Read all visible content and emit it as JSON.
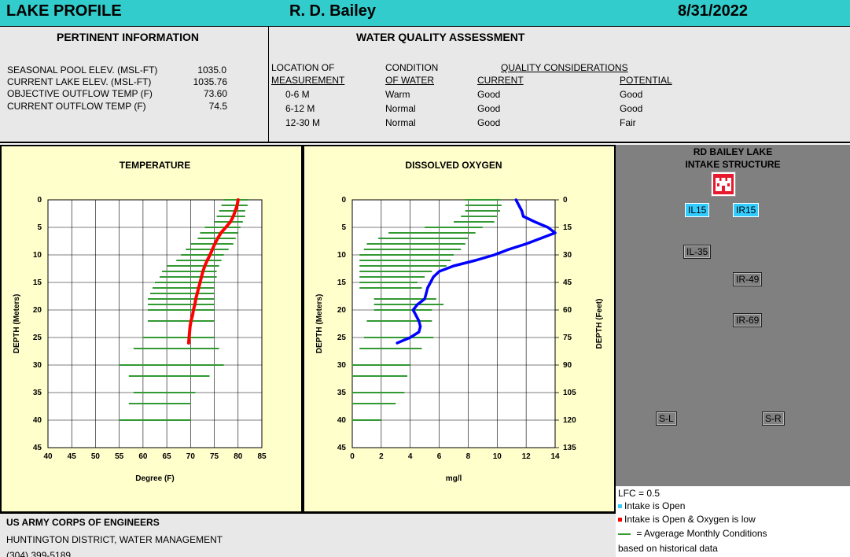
{
  "header": {
    "title": "LAKE PROFILE",
    "lake": "R. D. Bailey",
    "date": "8/31/2022"
  },
  "pertinent": {
    "title": "PERTINENT INFORMATION",
    "rows": [
      {
        "label": "SEASONAL POOL ELEV. (MSL-FT)",
        "value": "1035.0"
      },
      {
        "label": "CURRENT LAKE ELEV. (MSL-FT)",
        "value": "1035.76"
      },
      {
        "label": "OBJECTIVE OUTFLOW TEMP (F)",
        "value": "73.60"
      },
      {
        "label": "CURRENT OUTFLOW TEMP (F)",
        "value": "74.5"
      }
    ]
  },
  "wqa": {
    "title": "WATER QUALITY ASSESSMENT",
    "col_location_1": "LOCATION OF",
    "col_location_2": "MEASUREMENT",
    "col_condition_1": "CONDITION",
    "col_condition_2": "OF WATER",
    "col_quality": "QUALITY CONSIDERATIONS",
    "col_current": "CURRENT",
    "col_potential": "POTENTIAL",
    "rows": [
      {
        "loc": "0-6 M",
        "cond": "Warm",
        "cur": "Good",
        "pot": "Good"
      },
      {
        "loc": "6-12 M",
        "cond": "Normal",
        "cur": "Good",
        "pot": "Good"
      },
      {
        "loc": "12-30 M",
        "cond": "Normal",
        "cur": "Good",
        "pot": "Fair"
      }
    ]
  },
  "intake": {
    "title_1": "RD BAILEY LAKE",
    "title_2": "INTAKE STRUCTURE",
    "gates": [
      {
        "label": "IL15",
        "state": "open"
      },
      {
        "label": "IR15",
        "state": "open"
      },
      {
        "label": "IL-35",
        "state": "closed"
      },
      {
        "label": "IR-49",
        "state": "closed"
      },
      {
        "label": "IR-69",
        "state": "closed"
      },
      {
        "label": "S-L",
        "state": "closed"
      },
      {
        "label": "S-R",
        "state": "closed"
      }
    ],
    "colors": {
      "open": "#33ccff",
      "low_oxygen": "#ff0000",
      "monthly": "#339933"
    }
  },
  "legend": {
    "lfc": "LFC  =  0.5",
    "open": "Intake is Open",
    "low": "Intake is Open & Oxygen is low",
    "monthly": " = Avgerage Monthly Conditions",
    "hist": "based on historical data"
  },
  "footer": {
    "org": "US ARMY CORPS OF ENGINEERS",
    "district": "HUNTINGTON DISTRICT, WATER MANAGEMENT",
    "phone": "(304) 399-5189"
  },
  "chart_data": [
    {
      "type": "line",
      "title": "TEMPERATURE",
      "xlabel": "Degree (F)",
      "ylabel": "DEPTH (Meters)",
      "xlim": [
        40,
        85
      ],
      "ylim": [
        45,
        0
      ],
      "xticks": [
        40,
        45,
        50,
        55,
        60,
        65,
        70,
        75,
        80,
        85
      ],
      "yticks": [
        0,
        5,
        10,
        15,
        20,
        25,
        30,
        35,
        40,
        45
      ],
      "grid": true,
      "line_color": "#ff0000",
      "range_color": "#339933",
      "series": [
        {
          "depth": [
            0,
            1,
            2,
            3,
            4,
            5,
            6,
            7,
            8,
            9,
            10,
            11,
            12,
            13,
            14,
            15,
            16,
            17,
            18,
            19,
            20,
            21,
            22,
            23,
            24,
            25,
            26
          ],
          "values": [
            80.0,
            79.8,
            79.4,
            79.0,
            78.4,
            77.4,
            76.4,
            75.7,
            75.1,
            74.6,
            74.1,
            73.5,
            73.0,
            72.6,
            72.3,
            72.0,
            71.7,
            71.4,
            71.1,
            70.9,
            70.6,
            70.4,
            70.1,
            69.9,
            69.8,
            69.7,
            69.6
          ]
        }
      ],
      "monthly_ranges": [
        {
          "depth": 0,
          "min": 77.0,
          "max": 82.0
        },
        {
          "depth": 1,
          "min": 76.5,
          "max": 82.0
        },
        {
          "depth": 2,
          "min": 76.0,
          "max": 81.5
        },
        {
          "depth": 3,
          "min": 75.5,
          "max": 81.5
        },
        {
          "depth": 4,
          "min": 75.0,
          "max": 81.0
        },
        {
          "depth": 5,
          "min": 73.0,
          "max": 80.5
        },
        {
          "depth": 6,
          "min": 72.0,
          "max": 80.0
        },
        {
          "depth": 7,
          "min": 71.5,
          "max": 79.5
        },
        {
          "depth": 8,
          "min": 70.0,
          "max": 79.0
        },
        {
          "depth": 9,
          "min": 69.0,
          "max": 78.0
        },
        {
          "depth": 10,
          "min": 68.0,
          "max": 77.0
        },
        {
          "depth": 11,
          "min": 67.0,
          "max": 76.5
        },
        {
          "depth": 12,
          "min": 65.0,
          "max": 76.0
        },
        {
          "depth": 13,
          "min": 64.0,
          "max": 75.5
        },
        {
          "depth": 14,
          "min": 63.5,
          "max": 75.5
        },
        {
          "depth": 15,
          "min": 62.5,
          "max": 75.0
        },
        {
          "depth": 16,
          "min": 62.0,
          "max": 75.0
        },
        {
          "depth": 17,
          "min": 61.5,
          "max": 75.0
        },
        {
          "depth": 18,
          "min": 61.0,
          "max": 75.0
        },
        {
          "depth": 19,
          "min": 61.0,
          "max": 75.0
        },
        {
          "depth": 20,
          "min": 61.0,
          "max": 75.0
        },
        {
          "depth": 22,
          "min": 61.0,
          "max": 75.0
        },
        {
          "depth": 25,
          "min": 60.0,
          "max": 75.0
        },
        {
          "depth": 27,
          "min": 58.0,
          "max": 76.0
        },
        {
          "depth": 30,
          "min": 55.0,
          "max": 77.0
        },
        {
          "depth": 32,
          "min": 57.0,
          "max": 74.0
        },
        {
          "depth": 35,
          "min": 58.0,
          "max": 71.0
        },
        {
          "depth": 37,
          "min": 57.0,
          "max": 70.0
        },
        {
          "depth": 40,
          "min": 55.0,
          "max": 70.0
        }
      ]
    },
    {
      "type": "line",
      "title": "DISSOLVED OXYGEN",
      "xlabel": "mg/l",
      "ylabel": "DEPTH (Meters)",
      "y2label": "DEPTH (Feet)",
      "xlim": [
        0,
        14
      ],
      "ylim": [
        45,
        0
      ],
      "xticks": [
        0,
        2,
        4,
        6,
        8,
        10,
        12,
        14
      ],
      "yticks": [
        0,
        5,
        10,
        15,
        20,
        25,
        30,
        35,
        40,
        45
      ],
      "y2ticks": [
        0,
        15,
        30,
        45,
        60,
        75,
        90,
        105,
        120,
        135
      ],
      "grid": true,
      "line_color": "#0000ff",
      "range_color": "#339933",
      "series": [
        {
          "depth": [
            0,
            1,
            2,
            3,
            4,
            5,
            6,
            7,
            8,
            9,
            10,
            11,
            12,
            13,
            14,
            15,
            16,
            17,
            18,
            19,
            20,
            21,
            22,
            23,
            24,
            25,
            26
          ],
          "values": [
            11.3,
            11.5,
            11.7,
            11.8,
            12.6,
            13.5,
            14.0,
            13.0,
            12.0,
            10.8,
            9.8,
            8.5,
            7.0,
            6.0,
            5.6,
            5.4,
            5.2,
            5.1,
            5.0,
            4.5,
            4.2,
            4.4,
            4.6,
            4.7,
            4.6,
            4.0,
            3.1
          ]
        }
      ],
      "monthly_ranges": [
        {
          "depth": 0,
          "min": 7.8,
          "max": 10.2
        },
        {
          "depth": 1,
          "min": 7.8,
          "max": 10.3
        },
        {
          "depth": 2,
          "min": 7.8,
          "max": 10.2
        },
        {
          "depth": 3,
          "min": 7.5,
          "max": 10.0
        },
        {
          "depth": 4,
          "min": 7.0,
          "max": 9.8
        },
        {
          "depth": 5,
          "min": 5.0,
          "max": 9.0
        },
        {
          "depth": 6,
          "min": 2.5,
          "max": 8.5
        },
        {
          "depth": 7,
          "min": 1.8,
          "max": 8.0
        },
        {
          "depth": 8,
          "min": 1.0,
          "max": 7.8
        },
        {
          "depth": 9,
          "min": 0.8,
          "max": 7.5
        },
        {
          "depth": 10,
          "min": 0.5,
          "max": 7.0
        },
        {
          "depth": 11,
          "min": 0.5,
          "max": 6.8
        },
        {
          "depth": 12,
          "min": 0.5,
          "max": 6.5
        },
        {
          "depth": 13,
          "min": 0.5,
          "max": 5.5
        },
        {
          "depth": 14,
          "min": 0.5,
          "max": 5.0
        },
        {
          "depth": 15,
          "min": 0.5,
          "max": 4.5
        },
        {
          "depth": 16,
          "min": 0.5,
          "max": 4.8
        },
        {
          "depth": 18,
          "min": 1.5,
          "max": 5.8
        },
        {
          "depth": 19,
          "min": 1.5,
          "max": 6.3
        },
        {
          "depth": 20,
          "min": 1.5,
          "max": 5.5
        },
        {
          "depth": 22,
          "min": 1.0,
          "max": 5.5
        },
        {
          "depth": 25,
          "min": 0.8,
          "max": 5.6
        },
        {
          "depth": 27,
          "min": 0.5,
          "max": 4.8
        },
        {
          "depth": 30,
          "min": 0.0,
          "max": 4.0
        },
        {
          "depth": 32,
          "min": 0.0,
          "max": 3.8
        },
        {
          "depth": 35,
          "min": 0.0,
          "max": 3.6
        },
        {
          "depth": 37,
          "min": 0.0,
          "max": 3.0
        },
        {
          "depth": 40,
          "min": 0.0,
          "max": 2.0
        }
      ]
    }
  ]
}
